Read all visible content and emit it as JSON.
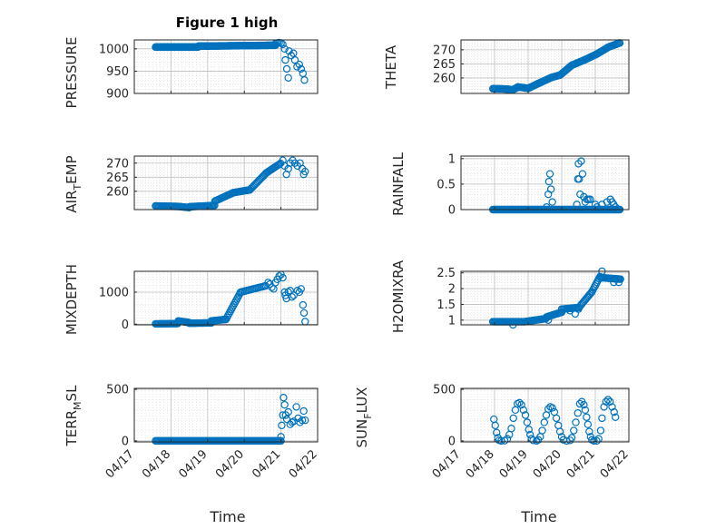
{
  "figure": {
    "title": "Figure 1 high"
  },
  "chart_data": [
    {
      "type": "scatter",
      "ylabel": "PRESSURE",
      "ylim": [
        900,
        1020
      ],
      "yticks": [
        900,
        950,
        1000
      ],
      "xlim": [
        0,
        5
      ],
      "marker": "o",
      "color": "#0072bd",
      "segments": [
        {
          "x0": 0.58,
          "x1": 1.75,
          "y0": 1004,
          "y1": 1004,
          "step": 0.02
        },
        {
          "x0": 1.75,
          "x1": 3.85,
          "y0": 1006,
          "y1": 1008,
          "step": 0.02
        }
      ],
      "points": [
        [
          3.85,
          1012
        ],
        [
          3.9,
          1013
        ],
        [
          3.95,
          1014
        ],
        [
          4.0,
          1013
        ],
        [
          4.05,
          1010
        ],
        [
          4.1,
          1000
        ],
        [
          4.12,
          975
        ],
        [
          4.16,
          955
        ],
        [
          4.2,
          935
        ],
        [
          4.22,
          995
        ],
        [
          4.28,
          985
        ],
        [
          4.34,
          990
        ],
        [
          4.38,
          975
        ],
        [
          4.44,
          960
        ],
        [
          4.5,
          965
        ],
        [
          4.55,
          955
        ],
        [
          4.6,
          945
        ],
        [
          4.64,
          930
        ]
      ]
    },
    {
      "type": "scatter",
      "ylabel": "THETA",
      "ylim": [
        254.5,
        273.5
      ],
      "yticks": [
        260,
        265,
        270
      ],
      "xlim": [
        0,
        5
      ],
      "marker": "o",
      "color": "#0072bd",
      "segments": [
        {
          "x0": 0.95,
          "x1": 1.3,
          "y0": 256.2,
          "y1": 256.1,
          "step": 0.03
        },
        {
          "x0": 1.3,
          "x1": 1.55,
          "y0": 256.1,
          "y1": 255.8,
          "step": 0.03
        },
        {
          "x0": 1.55,
          "x1": 1.7,
          "y0": 255.8,
          "y1": 256.8,
          "step": 0.03
        },
        {
          "x0": 1.7,
          "x1": 2.0,
          "y0": 256.8,
          "y1": 256.3,
          "step": 0.03
        },
        {
          "x0": 2.0,
          "x1": 2.3,
          "y0": 256.3,
          "y1": 258.0,
          "step": 0.03
        },
        {
          "x0": 2.3,
          "x1": 2.7,
          "y0": 258.0,
          "y1": 260.2,
          "step": 0.03
        },
        {
          "x0": 2.7,
          "x1": 2.95,
          "y0": 260.2,
          "y1": 261.0,
          "step": 0.03
        },
        {
          "x0": 2.95,
          "x1": 3.3,
          "y0": 261.0,
          "y1": 264.5,
          "step": 0.03
        },
        {
          "x0": 3.3,
          "x1": 3.7,
          "y0": 264.5,
          "y1": 266.5,
          "step": 0.03
        },
        {
          "x0": 3.7,
          "x1": 4.05,
          "y0": 266.5,
          "y1": 268.5,
          "step": 0.03
        },
        {
          "x0": 4.05,
          "x1": 4.4,
          "y0": 268.5,
          "y1": 271.0,
          "step": 0.03
        },
        {
          "x0": 4.4,
          "x1": 4.75,
          "y0": 271.0,
          "y1": 272.5,
          "step": 0.03
        }
      ],
      "points": []
    },
    {
      "type": "scatter",
      "ylabel": "AIR_TEMP",
      "ylim": [
        253.5,
        272.5
      ],
      "yticks": [
        260,
        265,
        270
      ],
      "xlim": [
        0,
        5
      ],
      "marker": "o",
      "color": "#0072bd",
      "segments": [
        {
          "x0": 0.58,
          "x1": 1.2,
          "y0": 254.8,
          "y1": 254.6,
          "step": 0.03
        },
        {
          "x0": 1.2,
          "x1": 1.5,
          "y0": 254.6,
          "y1": 254.2,
          "step": 0.03
        },
        {
          "x0": 1.5,
          "x1": 2.2,
          "y0": 254.5,
          "y1": 255.0,
          "step": 0.03
        },
        {
          "x0": 2.2,
          "x1": 2.7,
          "y0": 256.5,
          "y1": 259.5,
          "step": 0.03
        },
        {
          "x0": 2.7,
          "x1": 3.15,
          "y0": 259.5,
          "y1": 260.5,
          "step": 0.03
        },
        {
          "x0": 3.15,
          "x1": 3.6,
          "y0": 260.5,
          "y1": 266.5,
          "step": 0.03
        },
        {
          "x0": 3.6,
          "x1": 4.0,
          "y0": 266.5,
          "y1": 270.0,
          "step": 0.03
        }
      ],
      "points": [
        [
          4.05,
          271
        ],
        [
          4.1,
          269
        ],
        [
          4.15,
          266
        ],
        [
          4.2,
          268
        ],
        [
          4.25,
          270
        ],
        [
          4.32,
          271
        ],
        [
          4.38,
          270
        ],
        [
          4.45,
          269
        ],
        [
          4.52,
          270
        ],
        [
          4.58,
          268
        ],
        [
          4.62,
          266
        ],
        [
          4.66,
          267
        ]
      ]
    },
    {
      "type": "scatter",
      "ylabel": "RAINFALL",
      "ylim": [
        0,
        1.05
      ],
      "yticks": [
        0,
        0.5,
        1
      ],
      "xlim": [
        0,
        5
      ],
      "marker": "o",
      "color": "#0072bd",
      "segments": [
        {
          "x0": 0.95,
          "x1": 4.75,
          "y0": 0,
          "y1": 0,
          "step": 0.03
        }
      ],
      "points": [
        [
          2.55,
          0.05
        ],
        [
          2.6,
          0.3
        ],
        [
          2.62,
          0.55
        ],
        [
          2.65,
          0.7
        ],
        [
          2.68,
          0.4
        ],
        [
          2.72,
          0.15
        ],
        [
          3.45,
          0.1
        ],
        [
          3.48,
          0.6
        ],
        [
          3.5,
          0.9
        ],
        [
          3.52,
          0.6
        ],
        [
          3.55,
          0.3
        ],
        [
          3.58,
          0.95
        ],
        [
          3.62,
          0.7
        ],
        [
          3.66,
          0.25
        ],
        [
          3.7,
          0.15
        ],
        [
          3.75,
          0.2
        ],
        [
          3.8,
          0.2
        ],
        [
          3.85,
          0.2
        ],
        [
          4.0,
          0.1
        ],
        [
          4.05,
          0.05
        ],
        [
          4.2,
          0.1
        ],
        [
          4.35,
          0.15
        ],
        [
          4.45,
          0.2
        ],
        [
          4.5,
          0.15
        ],
        [
          4.55,
          0.1
        ],
        [
          4.6,
          0.05
        ]
      ]
    },
    {
      "type": "scatter",
      "ylabel": "MIXDEPTH",
      "ylim": [
        -20,
        1650
      ],
      "yticks": [
        0,
        1000
      ],
      "xlim": [
        0,
        5
      ],
      "marker": "o",
      "color": "#0072bd",
      "segments": [
        {
          "x0": 0.58,
          "x1": 1.2,
          "y0": 10,
          "y1": 20,
          "step": 0.03
        },
        {
          "x0": 1.2,
          "x1": 1.5,
          "y0": 100,
          "y1": 50,
          "step": 0.03
        },
        {
          "x0": 1.5,
          "x1": 2.1,
          "y0": 30,
          "y1": 40,
          "step": 0.03
        },
        {
          "x0": 2.1,
          "x1": 2.5,
          "y0": 100,
          "y1": 150,
          "step": 0.03
        },
        {
          "x0": 2.5,
          "x1": 2.9,
          "y0": 150,
          "y1": 1000,
          "step": 0.03
        },
        {
          "x0": 2.9,
          "x1": 3.6,
          "y0": 1000,
          "y1": 1200,
          "step": 0.04
        }
      ],
      "points": [
        [
          3.65,
          1300
        ],
        [
          3.7,
          1250
        ],
        [
          3.75,
          1150
        ],
        [
          3.8,
          1100
        ],
        [
          3.85,
          1300
        ],
        [
          3.9,
          1400
        ],
        [
          3.95,
          1500
        ],
        [
          4.0,
          1550
        ],
        [
          4.05,
          1450
        ],
        [
          4.1,
          1000
        ],
        [
          4.12,
          900
        ],
        [
          4.15,
          800
        ],
        [
          4.2,
          1000
        ],
        [
          4.25,
          1050
        ],
        [
          4.3,
          850
        ],
        [
          4.35,
          900
        ],
        [
          4.45,
          1050
        ],
        [
          4.5,
          1000
        ],
        [
          4.55,
          1100
        ],
        [
          4.6,
          600
        ],
        [
          4.63,
          350
        ],
        [
          4.66,
          80
        ]
      ]
    },
    {
      "type": "scatter",
      "ylabel": "H2OMIXRA",
      "ylim": [
        0.85,
        2.55
      ],
      "yticks": [
        1,
        1.5,
        2,
        2.5
      ],
      "xlim": [
        0,
        5
      ],
      "marker": "o",
      "color": "#0072bd",
      "segments": [
        {
          "x0": 0.95,
          "x1": 1.9,
          "y0": 0.95,
          "y1": 0.95,
          "step": 0.03
        },
        {
          "x0": 1.9,
          "x1": 2.55,
          "y0": 0.95,
          "y1": 1.05,
          "step": 0.03
        },
        {
          "x0": 2.55,
          "x1": 3.0,
          "y0": 1.1,
          "y1": 1.25,
          "step": 0.03
        },
        {
          "x0": 3.0,
          "x1": 3.55,
          "y0": 1.35,
          "y1": 1.4,
          "step": 0.04
        },
        {
          "x0": 3.55,
          "x1": 3.9,
          "y0": 1.45,
          "y1": 1.9,
          "step": 0.03
        },
        {
          "x0": 3.9,
          "x1": 4.15,
          "y0": 1.9,
          "y1": 2.4,
          "step": 0.03
        },
        {
          "x0": 4.15,
          "x1": 4.75,
          "y0": 2.35,
          "y1": 2.3,
          "step": 0.03
        }
      ],
      "points": [
        [
          1.55,
          0.85
        ],
        [
          2.6,
          1.0
        ],
        [
          3.25,
          1.3
        ],
        [
          3.4,
          1.2
        ],
        [
          3.5,
          1.35
        ],
        [
          4.2,
          2.55
        ],
        [
          4.55,
          2.2
        ],
        [
          4.7,
          2.2
        ]
      ]
    },
    {
      "type": "scatter",
      "ylabel": "TERR_MSL",
      "ylim": [
        -10,
        510
      ],
      "yticks": [
        0,
        500
      ],
      "xlim": [
        0,
        5
      ],
      "marker": "o",
      "color": "#0072bd",
      "segments": [
        {
          "x0": 0.58,
          "x1": 4.0,
          "y0": 0,
          "y1": 0,
          "step": 0.03
        }
      ],
      "points": [
        [
          4.0,
          40
        ],
        [
          4.02,
          150
        ],
        [
          4.05,
          250
        ],
        [
          4.07,
          420
        ],
        [
          4.1,
          350
        ],
        [
          4.13,
          250
        ],
        [
          4.16,
          210
        ],
        [
          4.2,
          280
        ],
        [
          4.25,
          160
        ],
        [
          4.3,
          180
        ],
        [
          4.35,
          190
        ],
        [
          4.42,
          330
        ],
        [
          4.47,
          220
        ],
        [
          4.52,
          180
        ],
        [
          4.58,
          200
        ],
        [
          4.62,
          290
        ],
        [
          4.66,
          200
        ]
      ]
    },
    {
      "type": "scatter",
      "ylabel": "SUN_FLUX",
      "ylim": [
        -10,
        510
      ],
      "yticks": [
        0,
        500
      ],
      "xlim": [
        0,
        5
      ],
      "marker": "o",
      "color": "#0072bd",
      "segments": [],
      "points": [
        [
          0.98,
          210
        ],
        [
          1.02,
          150
        ],
        [
          1.06,
          80
        ],
        [
          1.1,
          30
        ],
        [
          1.14,
          5
        ],
        [
          1.2,
          0
        ],
        [
          1.3,
          2
        ],
        [
          1.38,
          20
        ],
        [
          1.44,
          60
        ],
        [
          1.5,
          120
        ],
        [
          1.56,
          220
        ],
        [
          1.62,
          300
        ],
        [
          1.68,
          360
        ],
        [
          1.74,
          370
        ],
        [
          1.8,
          350
        ],
        [
          1.86,
          300
        ],
        [
          1.92,
          250
        ],
        [
          1.97,
          180
        ],
        [
          2.02,
          110
        ],
        [
          2.06,
          60
        ],
        [
          2.1,
          20
        ],
        [
          2.15,
          5
        ],
        [
          2.25,
          0
        ],
        [
          2.3,
          10
        ],
        [
          2.36,
          40
        ],
        [
          2.42,
          100
        ],
        [
          2.48,
          180
        ],
        [
          2.54,
          250
        ],
        [
          2.6,
          310
        ],
        [
          2.66,
          330
        ],
        [
          2.72,
          320
        ],
        [
          2.78,
          280
        ],
        [
          2.84,
          220
        ],
        [
          2.9,
          150
        ],
        [
          2.95,
          90
        ],
        [
          3.0,
          40
        ],
        [
          3.05,
          10
        ],
        [
          3.15,
          0
        ],
        [
          3.25,
          5
        ],
        [
          3.3,
          30
        ],
        [
          3.36,
          100
        ],
        [
          3.42,
          180
        ],
        [
          3.48,
          270
        ],
        [
          3.54,
          360
        ],
        [
          3.6,
          380
        ],
        [
          3.66,
          350
        ],
        [
          3.7,
          300
        ],
        [
          3.74,
          230
        ],
        [
          3.78,
          160
        ],
        [
          3.82,
          90
        ],
        [
          3.86,
          40
        ],
        [
          3.9,
          10
        ],
        [
          3.96,
          0
        ],
        [
          4.04,
          0
        ],
        [
          4.1,
          20
        ],
        [
          4.16,
          100
        ],
        [
          4.2,
          220
        ],
        [
          4.26,
          330
        ],
        [
          4.32,
          380
        ],
        [
          4.38,
          400
        ],
        [
          4.44,
          380
        ],
        [
          4.5,
          330
        ],
        [
          4.56,
          280
        ],
        [
          4.6,
          230
        ]
      ]
    }
  ],
  "ylabels": {
    "p1": "PRESSURE",
    "p2": "THETA",
    "p3_main": "AIR",
    "p3_sub": "T",
    "p3_end": "EMP",
    "p4": "RAINFALL",
    "p5": "MIXDEPTH",
    "p6": "H2OMIXRA",
    "p7_main": "TERR",
    "p7_sub": "M",
    "p7_end": "SL",
    "p8_main": "SUN",
    "p8_sub": "F",
    "p8_end": "LUX"
  },
  "xticks": [
    "04/17",
    "04/18",
    "04/19",
    "04/20",
    "04/21",
    "04/22"
  ],
  "xlabel": "Time"
}
